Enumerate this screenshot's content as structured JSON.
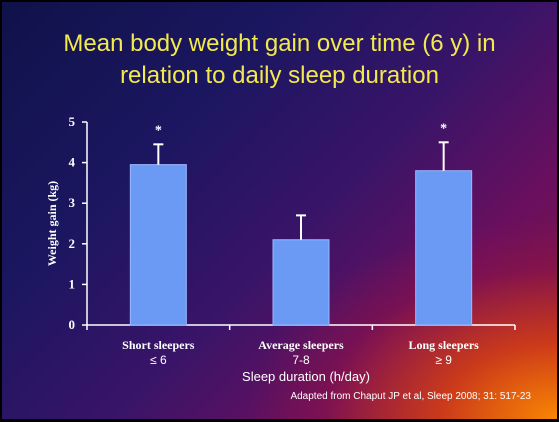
{
  "slide": {
    "title_line1": "Mean body weight gain over time (6 y) in",
    "title_line2": "relation to daily sleep duration",
    "source": "Adapted from Chaput JP et al, Sleep 2008; 31: 517-23"
  },
  "colors": {
    "bar": "#6b9af5",
    "bar_edge": "#9ab8ff",
    "title": "#f2e94e",
    "axis": "#ffffff"
  },
  "chart_data": {
    "type": "bar",
    "categories": [
      "Short sleepers",
      "Average sleepers",
      "Long sleepers"
    ],
    "category_ranges": [
      "≤ 6",
      "7-8",
      "≥ 9"
    ],
    "values": [
      3.95,
      2.1,
      3.8
    ],
    "error_upper": [
      4.45,
      2.7,
      4.5
    ],
    "significance": [
      "*",
      "",
      "*"
    ],
    "xlabel": "Sleep duration (h/day)",
    "ylabel": "Weight gain (kg)",
    "ylim": [
      0,
      5
    ],
    "yticks": [
      0,
      1,
      2,
      3,
      4,
      5
    ],
    "grid": false,
    "legend": "none"
  }
}
